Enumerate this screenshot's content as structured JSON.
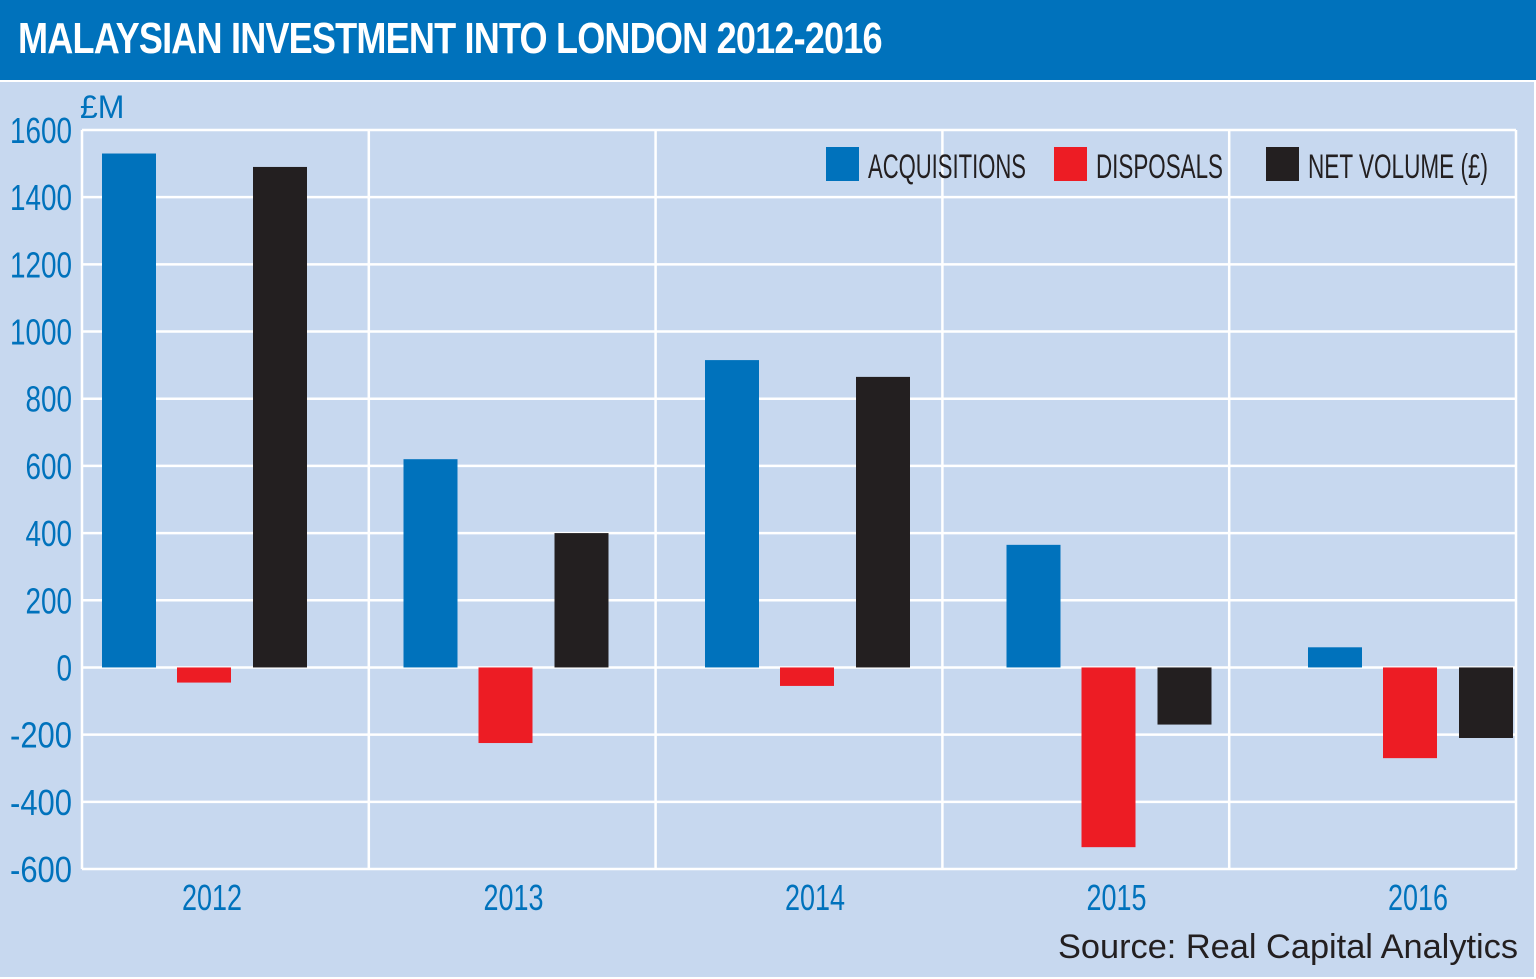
{
  "header": {
    "title": "MALAYSIAN INVESTMENT INTO LONDON 2012-2016"
  },
  "colors": {
    "header_bg": "#0072bc",
    "plot_bg": "#c7d8ef",
    "grid": "#ffffff",
    "tick_text": "#0072bc",
    "acquisitions": "#0072bc",
    "disposals": "#ed1c24",
    "net_volume": "#231f20"
  },
  "chart_data": {
    "type": "bar",
    "title": "MALAYSIAN INVESTMENT INTO LONDON 2012-2016",
    "ylabel": "£M",
    "xlabel": "",
    "ylim": [
      -600,
      1600
    ],
    "yticks": [
      1600,
      1400,
      1200,
      1000,
      800,
      600,
      400,
      200,
      0,
      -200,
      -400,
      -600
    ],
    "ytick_labels": [
      "1600",
      "1400",
      "1200",
      "1000",
      "800",
      "600",
      "400",
      "200",
      "0",
      "-200",
      "-400",
      "-600"
    ],
    "categories": [
      "2012",
      "2013",
      "2014",
      "2015",
      "2016"
    ],
    "series": [
      {
        "name": "ACQUISITIONS",
        "color": "#0072bc",
        "values": [
          1530,
          620,
          915,
          365,
          60
        ]
      },
      {
        "name": "DISPOSALS",
        "color": "#ed1c24",
        "values": [
          -45,
          -225,
          -55,
          -535,
          -270
        ]
      },
      {
        "name": "NET VOLUME (£)",
        "color": "#231f20",
        "values": [
          1490,
          400,
          865,
          -170,
          -210
        ]
      }
    ],
    "grid": true,
    "legend_position": "top-right"
  },
  "footer": {
    "source": "Source: Real Capital Analytics"
  }
}
